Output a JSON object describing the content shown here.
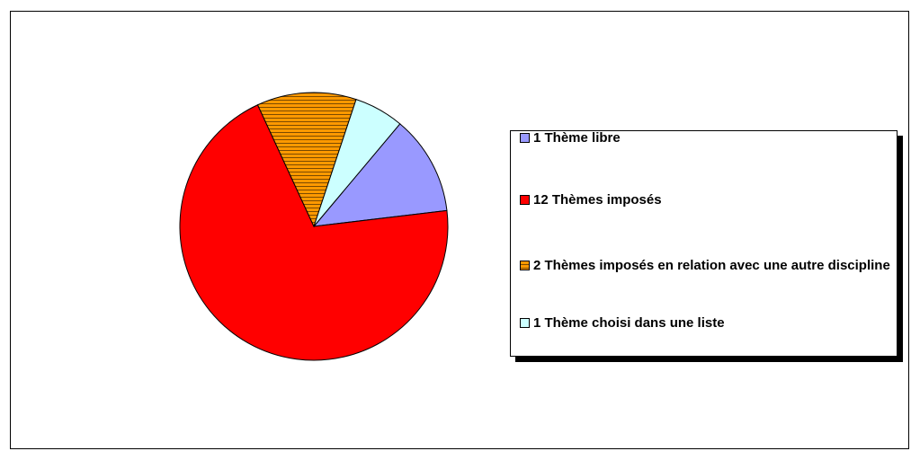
{
  "chart_data": {
    "type": "pie",
    "categories": [
      "1 Thème libre",
      "12 Thèmes imposés",
      "2 Thèmes imposés en relation avec une autre discipline",
      "1 Thème choisi dans une liste"
    ],
    "values": [
      12,
      70,
      12,
      6
    ],
    "colors": [
      "#9999ff",
      "#ff0000",
      "#ff9900",
      "#ccffff"
    ],
    "patterns": [
      null,
      null,
      "horizontal-lines",
      null
    ],
    "legend": "right"
  }
}
